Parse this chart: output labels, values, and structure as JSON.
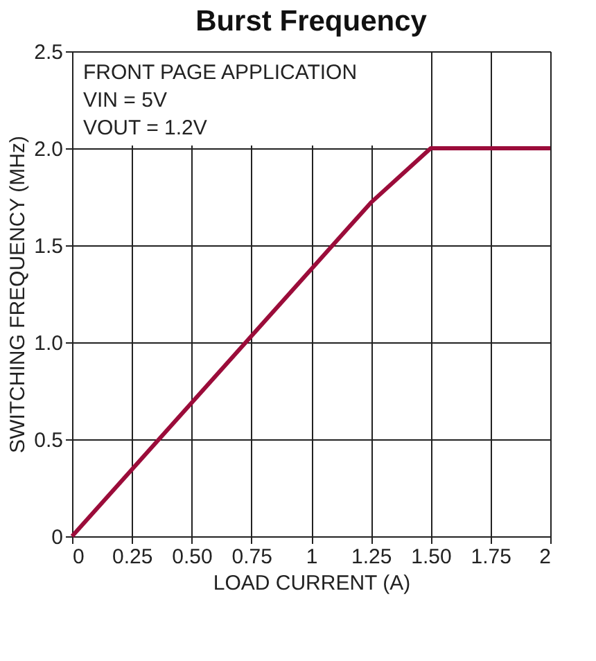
{
  "chart_data": {
    "type": "line",
    "title": "Burst Frequency",
    "xlabel": "LOAD CURRENT (A)",
    "ylabel": "SWITCHING FREQUENCY (MHz)",
    "x": [
      0,
      1.25,
      1.5,
      2
    ],
    "series": [
      {
        "color": "#9b0c3a",
        "values": [
          0,
          1.72,
          2.0,
          2.0
        ]
      }
    ],
    "xlim": [
      0,
      2
    ],
    "ylim": [
      0,
      2.5
    ],
    "xticks": [
      0,
      0.25,
      {
        "value": 0.5,
        "label": "0.50"
      },
      0.75,
      1,
      1.25,
      {
        "value": 1.5,
        "label": "1.50"
      },
      1.75,
      2
    ],
    "yticks": [
      0,
      0.5,
      {
        "value": 1,
        "label": "1.0"
      },
      1.5,
      {
        "value": 2,
        "label": "2.0"
      },
      2.5
    ],
    "annotations": [
      "FRONT PAGE APPLICATION",
      "VIN = 5V",
      "VOUT = 1.2V"
    ],
    "grid": true,
    "marker": "none",
    "line_style": "solid"
  }
}
